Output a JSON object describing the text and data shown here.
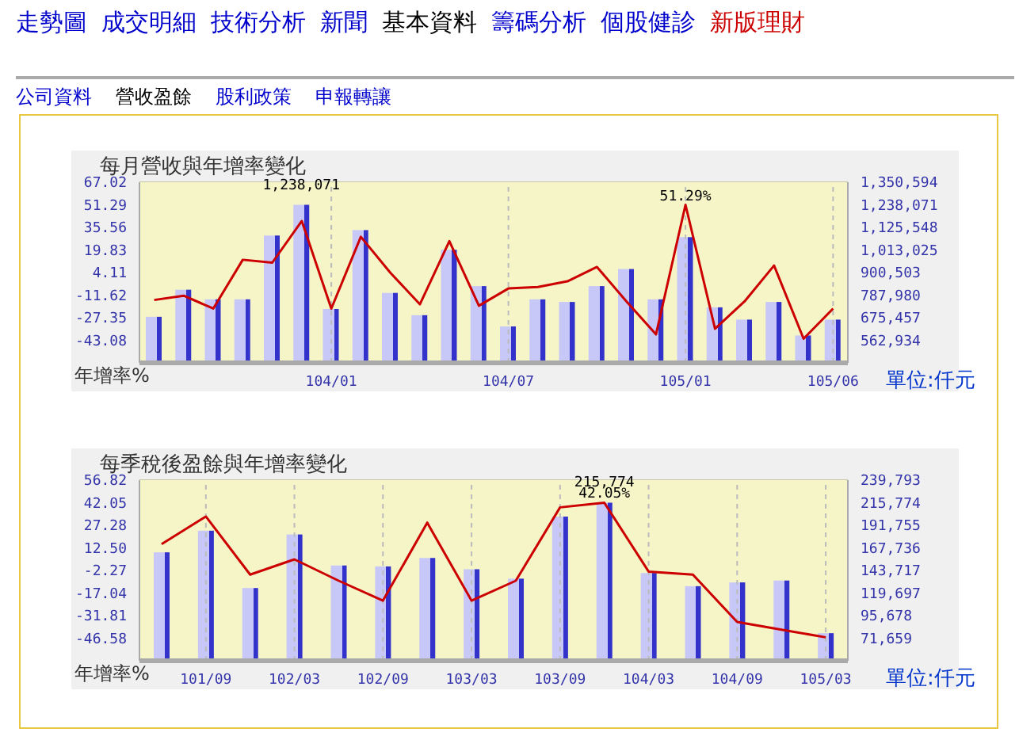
{
  "chart_data": [
    {
      "type": "other",
      "annotations": [
        "走勢圖",
        "成交明細",
        "技術分析",
        "新聞",
        "基本資料",
        "籌碼分析",
        "個股健診",
        "新版理財",
        "公司資料",
        "營收盈餘",
        "股利政策",
        "申報轉讓"
      ]
    },
    {
      "type": "bar",
      "title": "每月營收與年增率變化",
      "ylabel": "年增率%",
      "y2label": "單位:仟元",
      "grid": true,
      "categories": [
        null,
        null,
        null,
        null,
        null,
        null,
        "104/01",
        null,
        null,
        null,
        null,
        null,
        "104/07",
        null,
        null,
        null,
        null,
        null,
        "105/01",
        null,
        null,
        null,
        null,
        "105/06"
      ],
      "ylim": [
        -58.81,
        67.02
      ],
      "yticks": [
        -43.08,
        -27.35,
        -11.62,
        4.11,
        19.83,
        35.56,
        51.29,
        67.02
      ],
      "y2lim": [
        450411,
        1350594
      ],
      "y2ticks": [
        {
          "value": 562934,
          "label": "562,934"
        },
        {
          "value": 675457,
          "label": "675,457"
        },
        {
          "value": 787980,
          "label": "787,980"
        },
        {
          "value": 900503,
          "label": "900,503"
        },
        {
          "value": 1013025,
          "label": "1,013,025"
        },
        {
          "value": 1125548,
          "label": "1,125,548"
        },
        {
          "value": 1238071,
          "label": "1,238,071"
        },
        {
          "value": 1350594,
          "label": "1,350,594"
        }
      ],
      "series": [
        {
          "type": "bar",
          "axis": "y2",
          "color": "#c8c8f8",
          "values": [
            680000,
            815000,
            767000,
            767000,
            1085000,
            1238071,
            719000,
            1112000,
            799000,
            688000,
            1014000,
            833000,
            632000,
            767000,
            754000,
            833000,
            918000,
            767000,
            1077000,
            727000,
            666000,
            754000,
            587000,
            666000
          ],
          "value_labels": [
            null,
            null,
            null,
            null,
            null,
            "1,238,071",
            null,
            null,
            null,
            null,
            null,
            null,
            null,
            null,
            null,
            null,
            null,
            null,
            null,
            null,
            null,
            null,
            null,
            null
          ]
        },
        {
          "type": "line",
          "axis": "y",
          "color": "#cc0000",
          "values": [
            -15,
            -12,
            -21,
            13,
            11,
            40,
            -21,
            29,
            4,
            -18,
            26,
            -19,
            -7,
            -6,
            -2,
            8,
            -16,
            -39,
            51.29,
            -35,
            -16,
            9,
            -42,
            -21
          ],
          "value_labels": [
            null,
            null,
            null,
            null,
            null,
            null,
            null,
            null,
            null,
            null,
            null,
            null,
            null,
            null,
            null,
            null,
            null,
            null,
            "51.29%",
            null,
            null,
            null,
            null,
            null
          ]
        }
      ]
    },
    {
      "type": "bar",
      "title": "每季稅後盈餘與年增率變化",
      "ylabel": "年增率%",
      "y2label": "單位:仟元",
      "grid": true,
      "categories": [
        null,
        "101/09",
        null,
        "102/03",
        null,
        "102/09",
        null,
        "103/03",
        null,
        "103/09",
        null,
        "104/03",
        null,
        "104/09",
        null,
        "105/03"
      ],
      "ylim": [
        -61.35,
        56.82
      ],
      "yticks": [
        -46.58,
        -31.81,
        -17.04,
        -2.27,
        {
          "value": 12.5,
          "label": "12.50"
        },
        27.28,
        42.05,
        56.82
      ],
      "y2lim": [
        47640,
        239793
      ],
      "y2ticks": [
        {
          "value": 71659,
          "label": "71,659"
        },
        {
          "value": 95678,
          "label": "95,678"
        },
        {
          "value": 119697,
          "label": "119,697"
        },
        {
          "value": 143717,
          "label": "143,717"
        },
        {
          "value": 167736,
          "label": "167,736"
        },
        {
          "value": 191755,
          "label": "191,755"
        },
        {
          "value": 215774,
          "label": "215,774"
        },
        {
          "value": 239793,
          "label": "239,793"
        }
      ],
      "series": [
        {
          "type": "bar",
          "axis": "y2",
          "color": "#c8c8f8",
          "values": [
            163000,
            186000,
            125000,
            182000,
            149000,
            148000,
            157000,
            145000,
            135000,
            201000,
            215774,
            141000,
            127000,
            131000,
            133000,
            77000
          ],
          "value_labels": [
            null,
            null,
            null,
            null,
            null,
            null,
            null,
            null,
            null,
            null,
            "215,774",
            null,
            null,
            null,
            null,
            null
          ]
        },
        {
          "type": "line",
          "axis": "y",
          "color": "#cc0000",
          "values": [
            15,
            33,
            -5,
            5,
            -9,
            -22,
            29,
            -22,
            -9,
            39,
            42.05,
            -3,
            -5,
            -36,
            -41,
            -46
          ],
          "value_labels": [
            null,
            null,
            null,
            null,
            null,
            null,
            null,
            null,
            null,
            null,
            "42.05%",
            null,
            null,
            null,
            null,
            null
          ]
        }
      ]
    }
  ]
}
